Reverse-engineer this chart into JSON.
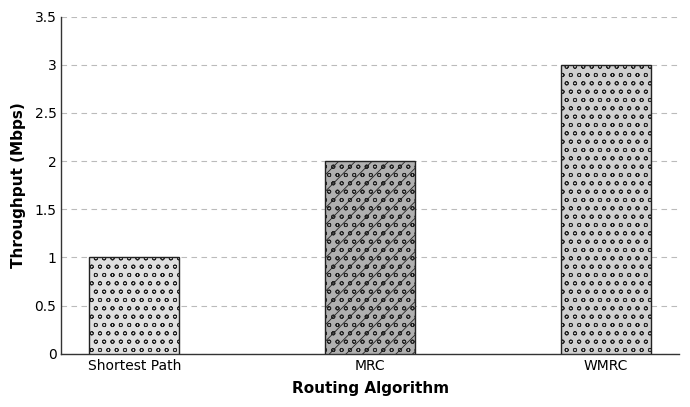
{
  "categories": [
    "Shortest Path",
    "MRC",
    "WMRC"
  ],
  "values": [
    1.0,
    2.0,
    3.0
  ],
  "ylim": [
    0,
    3.5
  ],
  "yticks": [
    0,
    0.5,
    1.0,
    1.5,
    2.0,
    2.5,
    3.0,
    3.5
  ],
  "ytick_labels": [
    "0",
    "0.5",
    "1",
    "1.5",
    "2",
    "2.5",
    "3",
    "3.5"
  ],
  "xlabel": "Routing Algorithm",
  "ylabel": "Throughput (Mbps)",
  "background_color": "#ffffff",
  "bar_edge_color": "#222222",
  "grid_color": "#bbbbbb",
  "label_fontsize": 11,
  "tick_fontsize": 10,
  "hatch_patterns": [
    "oo",
    "//oo",
    "oo"
  ],
  "bar_facecolors": [
    "#e0e0e0",
    "#b0b0b0",
    "#d0d0d0"
  ],
  "bar_width": 0.38
}
